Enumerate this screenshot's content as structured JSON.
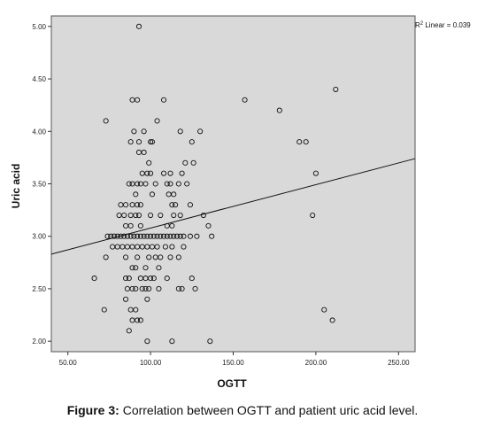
{
  "chart_data": {
    "type": "scatter",
    "xlabel": "OGTT",
    "ylabel": "Uric acid",
    "xlim": [
      40,
      260
    ],
    "ylim": [
      1.9,
      5.1
    ],
    "x_ticks": [
      50,
      100,
      150,
      200,
      250
    ],
    "x_tick_labels": [
      "50.00",
      "100.00",
      "150.00",
      "200.00",
      "250.00"
    ],
    "y_ticks": [
      2.0,
      2.5,
      3.0,
      3.5,
      4.0,
      4.5,
      5.0
    ],
    "y_tick_labels": [
      "2.00",
      "2.50",
      "3.00",
      "3.50",
      "4.00",
      "4.50",
      "5.00"
    ],
    "grid": false,
    "plot_background": "#d9d9d9",
    "fit_line": {
      "type": "linear",
      "x": [
        40,
        260
      ],
      "y": [
        2.83,
        3.74
      ]
    },
    "annotation": {
      "r2_prefix": "R",
      "r2_sup": "2",
      "r2_text": " Linear = 0.039"
    },
    "points": [
      [
        93,
        5.0
      ],
      [
        89,
        4.3
      ],
      [
        92,
        4.3
      ],
      [
        108,
        4.3
      ],
      [
        157,
        4.3
      ],
      [
        178,
        4.2
      ],
      [
        212,
        4.4
      ],
      [
        73,
        4.1
      ],
      [
        104,
        4.1
      ],
      [
        90,
        4.0
      ],
      [
        96,
        4.0
      ],
      [
        118,
        4.0
      ],
      [
        130,
        4.0
      ],
      [
        88,
        3.9
      ],
      [
        93,
        3.9
      ],
      [
        100,
        3.9
      ],
      [
        101,
        3.9
      ],
      [
        125,
        3.9
      ],
      [
        190,
        3.9
      ],
      [
        194,
        3.9
      ],
      [
        93,
        3.8
      ],
      [
        96,
        3.8
      ],
      [
        99,
        3.7
      ],
      [
        121,
        3.7
      ],
      [
        126,
        3.7
      ],
      [
        95,
        3.6
      ],
      [
        98,
        3.6
      ],
      [
        100,
        3.6
      ],
      [
        108,
        3.6
      ],
      [
        112,
        3.6
      ],
      [
        119,
        3.6
      ],
      [
        200,
        3.6
      ],
      [
        87,
        3.5
      ],
      [
        89,
        3.5
      ],
      [
        92,
        3.5
      ],
      [
        94,
        3.5
      ],
      [
        97,
        3.5
      ],
      [
        103,
        3.5
      ],
      [
        110,
        3.5
      ],
      [
        112,
        3.5
      ],
      [
        117,
        3.5
      ],
      [
        122,
        3.5
      ],
      [
        91,
        3.4
      ],
      [
        101,
        3.4
      ],
      [
        111,
        3.4
      ],
      [
        114,
        3.4
      ],
      [
        82,
        3.3
      ],
      [
        85,
        3.3
      ],
      [
        89,
        3.3
      ],
      [
        92,
        3.3
      ],
      [
        94,
        3.3
      ],
      [
        113,
        3.3
      ],
      [
        115,
        3.3
      ],
      [
        124,
        3.3
      ],
      [
        81,
        3.2
      ],
      [
        84,
        3.2
      ],
      [
        88,
        3.2
      ],
      [
        91,
        3.2
      ],
      [
        93,
        3.2
      ],
      [
        100,
        3.2
      ],
      [
        106,
        3.2
      ],
      [
        114,
        3.2
      ],
      [
        118,
        3.2
      ],
      [
        132,
        3.2
      ],
      [
        198,
        3.2
      ],
      [
        85,
        3.1
      ],
      [
        88,
        3.1
      ],
      [
        94,
        3.1
      ],
      [
        110,
        3.1
      ],
      [
        113,
        3.1
      ],
      [
        135,
        3.1
      ],
      [
        74,
        3.0
      ],
      [
        76,
        3.0
      ],
      [
        78,
        3.0
      ],
      [
        80,
        3.0
      ],
      [
        82,
        3.0
      ],
      [
        84,
        3.0
      ],
      [
        86,
        3.0
      ],
      [
        88,
        3.0
      ],
      [
        90,
        3.0
      ],
      [
        92,
        3.0
      ],
      [
        94,
        3.0
      ],
      [
        96,
        3.0
      ],
      [
        98,
        3.0
      ],
      [
        100,
        3.0
      ],
      [
        102,
        3.0
      ],
      [
        104,
        3.0
      ],
      [
        106,
        3.0
      ],
      [
        108,
        3.0
      ],
      [
        110,
        3.0
      ],
      [
        112,
        3.0
      ],
      [
        114,
        3.0
      ],
      [
        116,
        3.0
      ],
      [
        118,
        3.0
      ],
      [
        120,
        3.0
      ],
      [
        124,
        3.0
      ],
      [
        128,
        3.0
      ],
      [
        137,
        3.0
      ],
      [
        77,
        2.9
      ],
      [
        80,
        2.9
      ],
      [
        83,
        2.9
      ],
      [
        86,
        2.9
      ],
      [
        89,
        2.9
      ],
      [
        92,
        2.9
      ],
      [
        95,
        2.9
      ],
      [
        98,
        2.9
      ],
      [
        101,
        2.9
      ],
      [
        104,
        2.9
      ],
      [
        109,
        2.9
      ],
      [
        113,
        2.9
      ],
      [
        120,
        2.9
      ],
      [
        73,
        2.8
      ],
      [
        85,
        2.8
      ],
      [
        92,
        2.8
      ],
      [
        99,
        2.8
      ],
      [
        103,
        2.8
      ],
      [
        106,
        2.8
      ],
      [
        112,
        2.8
      ],
      [
        117,
        2.8
      ],
      [
        89,
        2.7
      ],
      [
        91,
        2.7
      ],
      [
        97,
        2.7
      ],
      [
        105,
        2.7
      ],
      [
        66,
        2.6
      ],
      [
        85,
        2.6
      ],
      [
        87,
        2.6
      ],
      [
        94,
        2.6
      ],
      [
        97,
        2.6
      ],
      [
        100,
        2.6
      ],
      [
        102,
        2.6
      ],
      [
        110,
        2.6
      ],
      [
        125,
        2.6
      ],
      [
        86,
        2.5
      ],
      [
        89,
        2.5
      ],
      [
        91,
        2.5
      ],
      [
        95,
        2.5
      ],
      [
        97,
        2.5
      ],
      [
        99,
        2.5
      ],
      [
        105,
        2.5
      ],
      [
        117,
        2.5
      ],
      [
        119,
        2.5
      ],
      [
        127,
        2.5
      ],
      [
        85,
        2.4
      ],
      [
        98,
        2.4
      ],
      [
        72,
        2.3
      ],
      [
        88,
        2.3
      ],
      [
        91,
        2.3
      ],
      [
        205,
        2.3
      ],
      [
        89,
        2.2
      ],
      [
        92,
        2.2
      ],
      [
        94,
        2.2
      ],
      [
        210,
        2.2
      ],
      [
        87,
        2.1
      ],
      [
        98,
        2.0
      ],
      [
        113,
        2.0
      ],
      [
        136,
        2.0
      ]
    ]
  },
  "caption": {
    "label": "Figure 3:",
    "text": " Correlation between OGTT and patient uric acid level."
  }
}
